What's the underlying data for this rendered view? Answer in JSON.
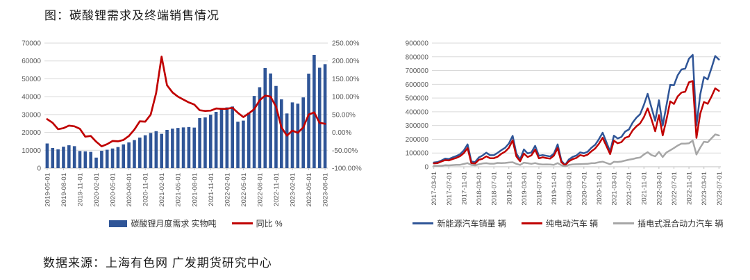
{
  "title": "图：碳酸锂需求及终端销售情况",
  "source": "数据来源：上海有色网  广发期货研究中心",
  "colors": {
    "blue": "#2F5597",
    "red": "#C00000",
    "gray": "#A6A6A6",
    "grid": "#D9D9D9",
    "axis_line": "#BFBFBF",
    "axis_text": "#595959"
  },
  "chart_data": [
    {
      "name": "lithium-demand",
      "type": "bar",
      "title": "",
      "grid": true,
      "legend_position": "bottom",
      "categories": [
        "2019-05-01",
        "2019-06-01",
        "2019-07-01",
        "2019-08-01",
        "2019-09-01",
        "2019-10-01",
        "2019-11-01",
        "2019-12-01",
        "2020-01-01",
        "2020-02-01",
        "2020-03-01",
        "2020-04-01",
        "2020-05-01",
        "2020-06-01",
        "2020-07-01",
        "2020-08-01",
        "2020-09-01",
        "2020-10-01",
        "2020-11-01",
        "2020-12-01",
        "2021-01-01",
        "2021-02-01",
        "2021-03-01",
        "2021-04-01",
        "2021-05-01",
        "2021-06-01",
        "2021-07-01",
        "2021-08-01",
        "2021-09-01",
        "2021-10-01",
        "2021-11-01",
        "2021-12-01",
        "2022-01-01",
        "2022-02-01",
        "2022-03-01",
        "2022-04-01",
        "2022-05-01",
        "2022-06-01",
        "2022-07-01",
        "2022-08-01",
        "2022-09-01",
        "2022-10-01",
        "2022-11-01",
        "2022-12-01",
        "2023-01-01",
        "2023-02-01",
        "2023-03-01",
        "2023-04-01",
        "2023-05-01",
        "2023-06-01",
        "2023-07-01",
        "2023-08-01"
      ],
      "series": [
        {
          "name": "碳酸锂月度需求 实物吨",
          "type": "bar",
          "axis": "left",
          "color": "#2F5597",
          "values": [
            13800,
            11300,
            10500,
            12000,
            12800,
            12300,
            9600,
            9400,
            9100,
            5900,
            9700,
            10300,
            11000,
            11800,
            13300,
            14400,
            15700,
            17100,
            18400,
            19700,
            20700,
            19200,
            21400,
            22100,
            22500,
            22800,
            23000,
            22700,
            28000,
            28400,
            29900,
            31500,
            33000,
            34000,
            34500,
            26000,
            26600,
            31000,
            40400,
            45300,
            56000,
            53000,
            46000,
            38500,
            30600,
            36800,
            36100,
            39600,
            52900,
            63400,
            56200,
            58200
          ]
        },
        {
          "name": "同比 %",
          "type": "line",
          "axis": "right",
          "color": "#C00000",
          "values": [
            37,
            27,
            9,
            12,
            19,
            17,
            10,
            -12,
            -10,
            -26,
            -39,
            -33,
            -24,
            -25,
            -21,
            -10,
            8,
            31,
            30,
            50,
            110,
            212,
            132,
            112,
            100,
            92,
            84,
            78,
            62,
            60,
            61,
            67,
            66,
            66,
            69,
            55,
            43,
            53,
            65,
            90,
            103,
            100,
            72,
            14,
            -9,
            5,
            -1,
            14,
            50,
            56,
            27,
            24
          ]
        }
      ],
      "left_axis": {
        "min": 0,
        "max": 70000,
        "ticks": [
          "0",
          "10000",
          "20000",
          "30000",
          "40000",
          "50000",
          "60000",
          "70000"
        ]
      },
      "right_axis": {
        "min": -100,
        "max": 250,
        "ticks": [
          "-100.00%",
          "-50.00%",
          "0.00%",
          "50.00%",
          "100.00%",
          "150.00%",
          "200.00%",
          "250.00%"
        ]
      },
      "xtick_every": 3,
      "xtick_labels": [
        "2019-05-01",
        "2019-08-01",
        "2019-11-01",
        "2020-02-01",
        "2020-05-01",
        "2020-08-01",
        "2020-11-01",
        "2021-02-01",
        "2021-05-01",
        "2021-08-01",
        "2021-11-01",
        "2022-02-01",
        "2022-05-01",
        "2022-08-01",
        "2022-11-01",
        "2023-02-01",
        "2023-05-01",
        "2023-08-01"
      ],
      "legend": [
        {
          "label": "碳酸锂月度需求 实物吨",
          "swatch": "bar",
          "color": "#2F5597"
        },
        {
          "label": "同比 %",
          "swatch": "line",
          "color": "#C00000"
        }
      ]
    },
    {
      "name": "nev-sales",
      "type": "line",
      "title": "",
      "grid": true,
      "legend_position": "bottom",
      "categories": [
        "2017-03-01",
        "2017-04-01",
        "2017-05-01",
        "2017-06-01",
        "2017-07-01",
        "2017-08-01",
        "2017-09-01",
        "2017-10-01",
        "2017-11-01",
        "2017-12-01",
        "2018-01-01",
        "2018-02-01",
        "2018-03-01",
        "2018-04-01",
        "2018-05-01",
        "2018-06-01",
        "2018-07-01",
        "2018-08-01",
        "2018-09-01",
        "2018-10-01",
        "2018-11-01",
        "2018-12-01",
        "2019-01-01",
        "2019-02-01",
        "2019-03-01",
        "2019-04-01",
        "2019-05-01",
        "2019-06-01",
        "2019-07-01",
        "2019-08-01",
        "2019-09-01",
        "2019-10-01",
        "2019-11-01",
        "2019-12-01",
        "2020-01-01",
        "2020-02-01",
        "2020-03-01",
        "2020-04-01",
        "2020-05-01",
        "2020-06-01",
        "2020-07-01",
        "2020-08-01",
        "2020-09-01",
        "2020-10-01",
        "2020-11-01",
        "2020-12-01",
        "2021-01-01",
        "2021-02-01",
        "2021-03-01",
        "2021-04-01",
        "2021-05-01",
        "2021-06-01",
        "2021-07-01",
        "2021-08-01",
        "2021-09-01",
        "2021-10-01",
        "2021-11-01",
        "2021-12-01",
        "2022-01-01",
        "2022-02-01",
        "2022-03-01",
        "2022-04-01",
        "2022-05-01",
        "2022-06-01",
        "2022-07-01",
        "2022-08-01",
        "2022-09-01",
        "2022-10-01",
        "2022-11-01",
        "2022-12-01",
        "2023-01-01",
        "2023-02-01",
        "2023-03-01",
        "2023-04-01",
        "2023-05-01",
        "2023-06-01",
        "2023-07-01"
      ],
      "series": [
        {
          "name": "新能源汽车销量 辆",
          "type": "line",
          "axis": "left",
          "color": "#2F5597",
          "values": [
            31000,
            34000,
            45000,
            59000,
            56000,
            68000,
            78000,
            91000,
            119000,
            163000,
            38900,
            34000,
            67800,
            81900,
            102000,
            84000,
            84000,
            101000,
            121000,
            138000,
            169000,
            225000,
            95700,
            52900,
            126000,
            97000,
            104000,
            152000,
            80000,
            85000,
            80000,
            75000,
            95000,
            163000,
            44000,
            12900,
            53000,
            72000,
            82000,
            104000,
            98000,
            109000,
            138000,
            160000,
            200000,
            248000,
            179000,
            110000,
            226000,
            206000,
            217000,
            256000,
            271000,
            321000,
            357000,
            383000,
            450000,
            531000,
            431000,
            334000,
            484000,
            299000,
            447000,
            596000,
            593000,
            666000,
            708000,
            714000,
            786000,
            814000,
            299000,
            525000,
            653000,
            636000,
            717000,
            806000,
            780000
          ]
        },
        {
          "name": "纯电动汽车 辆",
          "type": "line",
          "axis": "left",
          "color": "#C00000",
          "values": [
            25000,
            27000,
            38000,
            48000,
            46000,
            56000,
            64000,
            77000,
            99000,
            136000,
            26000,
            24000,
            50000,
            58000,
            76000,
            62000,
            62000,
            73000,
            94000,
            110000,
            138000,
            192000,
            74700,
            40000,
            96000,
            71000,
            83000,
            125000,
            61000,
            69000,
            63000,
            59000,
            81000,
            136000,
            33000,
            10100,
            40000,
            55000,
            64000,
            85000,
            78000,
            88000,
            112000,
            133000,
            167000,
            211000,
            151000,
            92000,
            190000,
            171000,
            179000,
            211000,
            220000,
            265000,
            294000,
            316000,
            361000,
            425000,
            346000,
            258000,
            376000,
            228000,
            343000,
            476000,
            457000,
            512000,
            540000,
            546000,
            615000,
            624000,
            210000,
            386000,
            471000,
            458000,
            510000,
            571000,
            552000
          ]
        },
        {
          "name": "插电式混合动力汽车 辆",
          "type": "line",
          "axis": "left",
          "color": "#A6A6A6",
          "values": [
            6000,
            7000,
            7000,
            11000,
            10000,
            12000,
            14000,
            14000,
            20000,
            27000,
            12900,
            10000,
            17800,
            23900,
            26000,
            22000,
            22000,
            28000,
            27000,
            28000,
            31000,
            33000,
            21000,
            12900,
            30000,
            26000,
            21000,
            27000,
            19000,
            16000,
            17000,
            16000,
            14000,
            27000,
            11000,
            2800,
            13000,
            17000,
            18000,
            19000,
            20000,
            21000,
            26000,
            27000,
            33000,
            37000,
            28000,
            18000,
            36000,
            35000,
            38000,
            45000,
            51000,
            56000,
            63000,
            67000,
            89000,
            106000,
            85000,
            76000,
            108000,
            71000,
            104000,
            120000,
            136000,
            154000,
            168000,
            168000,
            171000,
            190000,
            89000,
            139000,
            182000,
            178000,
            207000,
            235000,
            228000
          ]
        }
      ],
      "left_axis": {
        "min": 0,
        "max": 900000,
        "ticks": [
          "0",
          "100000",
          "200000",
          "300000",
          "400000",
          "500000",
          "600000",
          "700000",
          "800000",
          "900000"
        ]
      },
      "right_axis": null,
      "xtick_every": 4,
      "xtick_labels": [
        "2017-03-01",
        "2017-07-01",
        "2017-11-01",
        "2018-03-01",
        "2018-07-01",
        "2018-11-01",
        "2019-03-01",
        "2019-07-01",
        "2019-11-01",
        "2020-03-01",
        "2020-07-01",
        "2020-11-01",
        "2021-03-01",
        "2021-07-01",
        "2021-11-01",
        "2022-03-01",
        "2022-07-01",
        "2022-11-01",
        "2023-03-01",
        "2023-07-01"
      ],
      "legend": [
        {
          "label": "新能源汽车销量 辆",
          "swatch": "line",
          "color": "#2F5597"
        },
        {
          "label": "纯电动汽车 辆",
          "swatch": "line",
          "color": "#C00000"
        },
        {
          "label": "插电式混合动力汽车 辆",
          "swatch": "line",
          "color": "#A6A6A6"
        }
      ]
    }
  ]
}
